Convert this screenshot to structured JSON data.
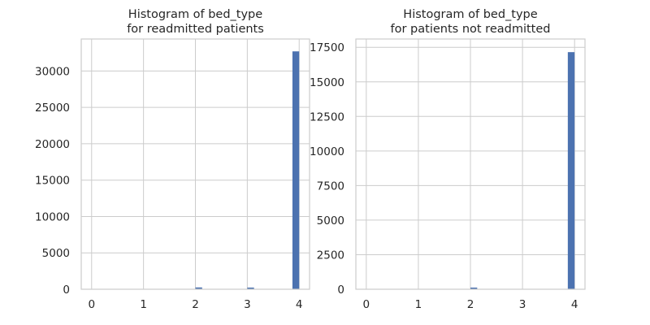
{
  "figure": {
    "background": "#ffffff"
  },
  "chart_data": [
    {
      "type": "bar",
      "title": "Histogram of bed_type\nfor readmitted patients",
      "title_lines": [
        "Histogram of bed_type",
        "for readmitted patients"
      ],
      "xlabel": "",
      "ylabel": "",
      "xlim": [
        -0.2,
        4.2
      ],
      "ylim": [
        0,
        34400
      ],
      "xticks": [
        0,
        1,
        2,
        3,
        4
      ],
      "yticks": [
        0,
        5000,
        10000,
        15000,
        20000,
        25000,
        30000
      ],
      "bins": [
        {
          "x": 0.0,
          "value": 30
        },
        {
          "x": 2.0,
          "value": 250
        },
        {
          "x": 3.0,
          "value": 230
        },
        {
          "x": 3.87,
          "value": 32700
        }
      ],
      "bin_width": 0.13,
      "color": "#4c72b0",
      "grid": true
    },
    {
      "type": "bar",
      "title": "Histogram of bed_type\nfor patients not readmitted",
      "title_lines": [
        "Histogram of bed_type",
        "for patients not readmitted"
      ],
      "xlabel": "",
      "ylabel": "",
      "xlim": [
        -0.2,
        4.2
      ],
      "ylim": [
        0,
        18100
      ],
      "xticks": [
        0,
        1,
        2,
        3,
        4
      ],
      "yticks": [
        0,
        2500,
        5000,
        7500,
        10000,
        12500,
        15000,
        17500
      ],
      "bins": [
        {
          "x": 0.0,
          "value": 20
        },
        {
          "x": 2.0,
          "value": 120
        },
        {
          "x": 3.87,
          "value": 17150
        }
      ],
      "bin_width": 0.13,
      "color": "#4c72b0",
      "grid": true
    }
  ]
}
